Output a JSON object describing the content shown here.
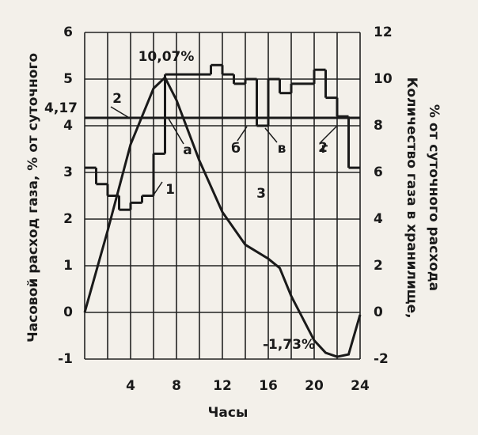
{
  "chart_data": {
    "type": "step-line",
    "x_label": "Часы",
    "y_label": "Часовой расход газа, % от суточного",
    "y2_label_1": "Количество газа в хранилище,",
    "y2_label_2": "% от суточного расхода",
    "xlim": [
      0,
      24
    ],
    "xticks": [
      4,
      8,
      12,
      16,
      20,
      24
    ],
    "xgrid": [
      0,
      2,
      4,
      6,
      8,
      10,
      12,
      14,
      16,
      18,
      20,
      22,
      24
    ],
    "ylim": [
      -1,
      6
    ],
    "yticks": [
      -1,
      0,
      1,
      2,
      3,
      {
        "value": 4.17,
        "label": "4,17"
      },
      4,
      5,
      6
    ],
    "ygrid": [
      -1,
      0,
      1,
      2,
      3,
      4,
      5,
      6
    ],
    "y2lim": [
      -2,
      12
    ],
    "y2ticks": [
      -2,
      0,
      2,
      4,
      6,
      8,
      10,
      12
    ],
    "grid": true,
    "series": [
      {
        "name": "1",
        "color": "#1a1a1a",
        "kind": "step",
        "x": [
          0,
          1,
          2,
          3,
          4,
          5,
          6,
          7,
          8,
          9,
          10,
          11,
          12,
          13,
          14,
          15,
          16,
          17,
          18,
          19,
          20,
          21,
          22,
          23
        ],
        "values": [
          3.1,
          2.75,
          2.5,
          2.2,
          2.35,
          2.5,
          3.4,
          5.1,
          5.1,
          5.1,
          5.1,
          5.3,
          5.1,
          4.9,
          5.0,
          4.0,
          5.0,
          4.7,
          4.9,
          4.9,
          5.2,
          4.6,
          4.2,
          3.1
        ]
      },
      {
        "name": "2",
        "color": "#1a1a1a",
        "kind": "hline",
        "values": [
          4.17
        ]
      },
      {
        "name": "3",
        "color": "#1a1a1a",
        "kind": "line",
        "axis": "y2",
        "x": [
          0,
          2,
          4,
          6,
          7,
          8,
          10,
          12,
          14,
          16,
          17,
          18,
          20,
          21,
          22,
          23,
          24
        ],
        "values": [
          0,
          3.5,
          7.2,
          9.6,
          10.07,
          9.1,
          6.5,
          4.3,
          2.9,
          2.3,
          1.9,
          0.7,
          -1.2,
          -1.73,
          -1.9,
          -1.8,
          -0.1
        ]
      }
    ],
    "annotations": [
      "10,07%",
      "-1,73%",
      "а",
      "б",
      "в",
      "г"
    ]
  }
}
